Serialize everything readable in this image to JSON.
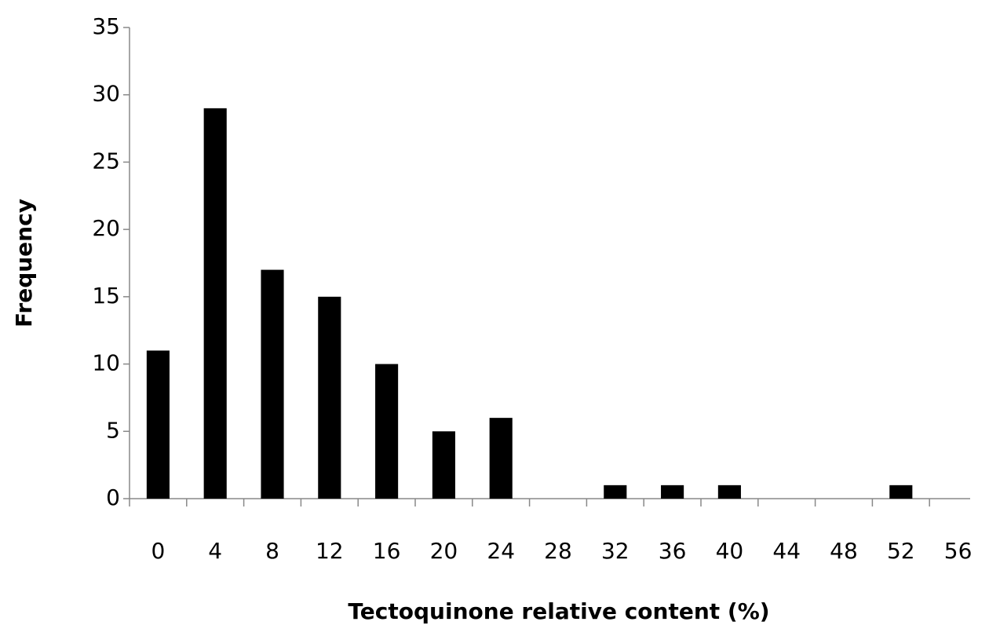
{
  "chart_data": {
    "type": "bar",
    "x_label": "Tectoquinone relative content (%)",
    "y_label": "Frequency",
    "categories": [
      "0",
      "4",
      "8",
      "12",
      "16",
      "20",
      "24",
      "28",
      "32",
      "36",
      "40",
      "44",
      "48",
      "52",
      "56"
    ],
    "values": [
      11,
      29,
      17,
      15,
      10,
      5,
      6,
      0,
      1,
      1,
      1,
      0,
      0,
      1,
      0
    ],
    "color": "#000000",
    "ylim": [
      0,
      35
    ],
    "yticks": [
      0,
      5,
      10,
      15,
      20,
      25,
      30,
      35
    ],
    "grid": false
  }
}
